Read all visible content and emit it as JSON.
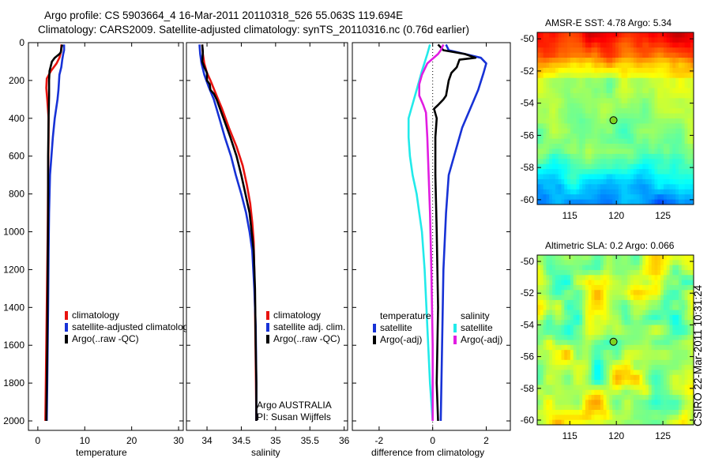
{
  "header": {
    "line1": "Argo profile: CS 5903664_4 16-Mar-2011 20110318_526 55.063S 119.694E",
    "line2": "Climatology: CARS2009. Satellite-adjusted climatology: synTS_20110316.nc (0.76d earlier)"
  },
  "stamp": "CSIRO 22-Mar-2011 10:31:24",
  "colors": {
    "red": "#e8130f",
    "blue": "#1732d6",
    "black": "#000000",
    "cyan": "#22eaea",
    "magenta": "#e11de1"
  },
  "chart_data": [
    {
      "type": "line",
      "id": "temperature",
      "xlabel": "temperature",
      "ylabel": "",
      "xlim": [
        -2,
        31
      ],
      "ylim": [
        2050,
        0
      ],
      "xticks": [
        0,
        10,
        20,
        30
      ],
      "yticks": [
        0,
        200,
        400,
        600,
        800,
        1000,
        1200,
        1400,
        1600,
        1800,
        2000
      ],
      "legend": [
        "climatology",
        "satellite-adjusted climatology",
        "Argo(..raw -QC)"
      ],
      "series": [
        {
          "name": "climatology",
          "color": "red",
          "points": [
            [
              5.0,
              10
            ],
            [
              5.0,
              40
            ],
            [
              4.8,
              60
            ],
            [
              4.6,
              80
            ],
            [
              4.0,
              110
            ],
            [
              2.8,
              150
            ],
            [
              1.9,
              190
            ],
            [
              1.8,
              240
            ],
            [
              2.0,
              300
            ],
            [
              2.3,
              400
            ],
            [
              2.3,
              500
            ],
            [
              2.2,
              700
            ],
            [
              2.1,
              1000
            ],
            [
              1.9,
              1400
            ],
            [
              1.7,
              1800
            ],
            [
              1.6,
              2000
            ]
          ]
        },
        {
          "name": "satellite-adjusted climatology",
          "color": "blue",
          "points": [
            [
              5.6,
              10
            ],
            [
              5.6,
              40
            ],
            [
              5.4,
              60
            ],
            [
              5.2,
              90
            ],
            [
              5.0,
              130
            ],
            [
              4.6,
              170
            ],
            [
              4.4,
              250
            ],
            [
              4.2,
              300
            ],
            [
              3.6,
              400
            ],
            [
              3.2,
              500
            ],
            [
              2.6,
              700
            ],
            [
              2.4,
              900
            ],
            [
              2.3,
              1100
            ],
            [
              2.2,
              1400
            ],
            [
              2.0,
              1800
            ],
            [
              1.9,
              2000
            ]
          ]
        },
        {
          "name": "Argo(..raw -QC)",
          "color": "black",
          "points": [
            [
              5.2,
              10
            ],
            [
              5.0,
              30
            ],
            [
              4.9,
              50
            ],
            [
              4.6,
              60
            ],
            [
              3.6,
              80
            ],
            [
              3.0,
              100
            ],
            [
              2.5,
              150
            ],
            [
              2.4,
              200
            ],
            [
              2.4,
              280
            ],
            [
              2.3,
              400
            ],
            [
              2.2,
              600
            ],
            [
              2.2,
              900
            ],
            [
              2.1,
              1200
            ],
            [
              2.0,
              1600
            ],
            [
              1.8,
              2000
            ]
          ]
        }
      ]
    },
    {
      "type": "line",
      "id": "salinity",
      "xlabel": "salinity",
      "xlim": [
        33.7,
        36.05
      ],
      "ylim": [
        2050,
        0
      ],
      "xticks": [
        34,
        34.5,
        35,
        35.5,
        36
      ],
      "xtick_labels": [
        "34",
        "34.5",
        "35",
        "35.5",
        "36"
      ],
      "legend": [
        "climatology",
        "satellite adj. clim.",
        "Argo(..raw -QC)"
      ],
      "annotation": [
        "Argo AUSTRALIA",
        "PI: Susan Wijffels"
      ],
      "series": [
        {
          "name": "climatology",
          "color": "red",
          "points": [
            [
              33.93,
              10
            ],
            [
              33.94,
              60
            ],
            [
              33.96,
              110
            ],
            [
              34.0,
              160
            ],
            [
              34.05,
              200
            ],
            [
              34.14,
              280
            ],
            [
              34.22,
              350
            ],
            [
              34.32,
              450
            ],
            [
              34.43,
              550
            ],
            [
              34.52,
              650
            ],
            [
              34.58,
              750
            ],
            [
              34.63,
              850
            ],
            [
              34.66,
              950
            ],
            [
              34.68,
              1050
            ],
            [
              34.69,
              1200
            ],
            [
              34.7,
              1400
            ],
            [
              34.71,
              1700
            ],
            [
              34.72,
              2000
            ]
          ]
        },
        {
          "name": "satellite adj. clim.",
          "color": "blue",
          "points": [
            [
              33.89,
              10
            ],
            [
              33.9,
              60
            ],
            [
              33.92,
              110
            ],
            [
              33.96,
              170
            ],
            [
              34.02,
              230
            ],
            [
              34.1,
              300
            ],
            [
              34.18,
              400
            ],
            [
              34.26,
              500
            ],
            [
              34.35,
              600
            ],
            [
              34.42,
              700
            ],
            [
              34.5,
              800
            ],
            [
              34.57,
              900
            ],
            [
              34.62,
              1000
            ],
            [
              34.66,
              1100
            ],
            [
              34.69,
              1300
            ],
            [
              34.71,
              1500
            ],
            [
              34.72,
              1800
            ],
            [
              34.72,
              2000
            ]
          ]
        },
        {
          "name": "Argo(..raw -QC)",
          "color": "black",
          "points": [
            [
              33.93,
              10
            ],
            [
              33.94,
              50
            ],
            [
              33.93,
              100
            ],
            [
              33.96,
              130
            ],
            [
              34.0,
              160
            ],
            [
              34.0,
              200
            ],
            [
              34.04,
              220
            ],
            [
              34.05,
              250
            ],
            [
              34.1,
              270
            ],
            [
              34.14,
              300
            ],
            [
              34.24,
              400
            ],
            [
              34.34,
              500
            ],
            [
              34.43,
              600
            ],
            [
              34.5,
              700
            ],
            [
              34.56,
              800
            ],
            [
              34.62,
              900
            ],
            [
              34.65,
              1000
            ],
            [
              34.68,
              1100
            ],
            [
              34.7,
              1300
            ],
            [
              34.71,
              1600
            ],
            [
              34.72,
              1800
            ],
            [
              34.72,
              2000
            ]
          ]
        }
      ]
    },
    {
      "type": "line",
      "id": "difference",
      "xlabel": "difference from climatology",
      "xlim": [
        -3.0,
        2.9
      ],
      "ylim": [
        2050,
        0
      ],
      "xticks": [
        -2,
        0,
        2
      ],
      "legend_temperature_title": "temperature",
      "legend_salinity_title": "salinity",
      "legend_temperature": [
        "satellite",
        "Argo(-adj)"
      ],
      "legend_salinity": [
        "satellite",
        "Argo(-adj)"
      ],
      "series": [
        {
          "name": "temperature satellite",
          "color": "blue",
          "points": [
            [
              0.5,
              10
            ],
            [
              0.6,
              40
            ],
            [
              1.2,
              60
            ],
            [
              1.8,
              80
            ],
            [
              2.0,
              110
            ],
            [
              1.9,
              160
            ],
            [
              1.7,
              250
            ],
            [
              1.4,
              350
            ],
            [
              1.1,
              450
            ],
            [
              0.8,
              600
            ],
            [
              0.6,
              700
            ],
            [
              0.5,
              900
            ],
            [
              0.4,
              1200
            ],
            [
              0.35,
              1600
            ],
            [
              0.3,
              2000
            ]
          ]
        },
        {
          "name": "temperature Argo(-adj)",
          "color": "black",
          "points": [
            [
              0.2,
              10
            ],
            [
              0.4,
              40
            ],
            [
              1.2,
              60
            ],
            [
              1.6,
              80
            ],
            [
              1.0,
              90
            ],
            [
              0.9,
              130
            ],
            [
              0.7,
              160
            ],
            [
              0.6,
              200
            ],
            [
              0.5,
              280
            ],
            [
              0.4,
              300
            ],
            [
              0.2,
              330
            ],
            [
              0.05,
              350
            ],
            [
              0.15,
              400
            ],
            [
              0.1,
              500
            ],
            [
              0.1,
              700
            ],
            [
              0.15,
              1000
            ],
            [
              0.2,
              1400
            ],
            [
              0.15,
              1800
            ],
            [
              0.2,
              2000
            ]
          ]
        },
        {
          "name": "salinity satellite",
          "color": "cyan",
          "points": [
            [
              -0.1,
              10
            ],
            [
              -0.2,
              60
            ],
            [
              -0.4,
              150
            ],
            [
              -0.6,
              250
            ],
            [
              -0.8,
              350
            ],
            [
              -0.9,
              400
            ],
            [
              -0.9,
              500
            ],
            [
              -0.85,
              600
            ],
            [
              -0.75,
              700
            ],
            [
              -0.6,
              800
            ],
            [
              -0.5,
              900
            ],
            [
              -0.4,
              1000
            ],
            [
              -0.3,
              1200
            ],
            [
              -0.2,
              1500
            ],
            [
              -0.1,
              1800
            ],
            [
              0.0,
              2000
            ]
          ]
        },
        {
          "name": "salinity Argo(-adj)",
          "color": "magenta",
          "points": [
            [
              0.4,
              10
            ],
            [
              0.3,
              40
            ],
            [
              0.2,
              60
            ],
            [
              -0.2,
              110
            ],
            [
              -0.4,
              170
            ],
            [
              -0.5,
              220
            ],
            [
              -0.5,
              280
            ],
            [
              -0.35,
              330
            ],
            [
              -0.25,
              370
            ],
            [
              -0.2,
              500
            ],
            [
              -0.15,
              700
            ],
            [
              -0.1,
              900
            ],
            [
              -0.05,
              1200
            ],
            [
              0.0,
              1600
            ],
            [
              0.0,
              2000
            ]
          ]
        }
      ]
    },
    {
      "type": "heatmap",
      "id": "sst-map",
      "title": "AMSR-E SST: 4.78 Argo: 5.34",
      "xlim": [
        111.5,
        128.3
      ],
      "ylim": [
        -60.3,
        -49.6
      ],
      "xticks": [
        115,
        120,
        125
      ],
      "yticks": [
        -50,
        -52,
        -54,
        -56,
        -58,
        -60
      ],
      "marker": {
        "lon": 119.694,
        "lat": -55.063
      }
    },
    {
      "type": "heatmap",
      "id": "sla-map",
      "title": "Altimetric SLA: 0.2 Argo: 0.066",
      "xlim": [
        111.5,
        128.3
      ],
      "ylim": [
        -60.3,
        -49.6
      ],
      "xticks": [
        115,
        120,
        125
      ],
      "yticks": [
        -50,
        -52,
        -54,
        -56,
        -58,
        -60
      ],
      "marker": {
        "lon": 119.694,
        "lat": -55.063
      }
    }
  ]
}
